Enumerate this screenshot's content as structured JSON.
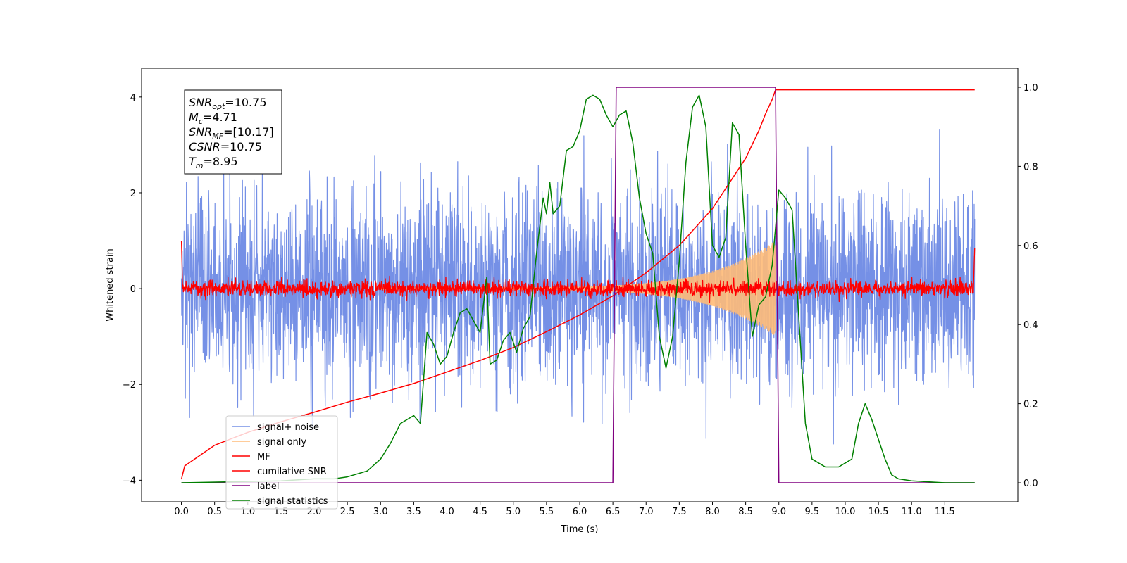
{
  "chart_data": {
    "type": "line",
    "xlabel": "Time (s)",
    "ylabel": "Whitened strain",
    "xlim": [
      -0.6,
      12.6
    ],
    "ylim": [
      -4.45,
      4.6
    ],
    "y2lim": [
      -0.048,
      1.048
    ],
    "x_ticks": [
      "0.0",
      "0.5",
      "1.0",
      "1.5",
      "2.0",
      "2.5",
      "3.0",
      "3.5",
      "4.0",
      "4.5",
      "5.0",
      "5.5",
      "6.0",
      "6.5",
      "7.0",
      "7.5",
      "8.0",
      "8.5",
      "9.0",
      "9.5",
      "10.0",
      "10.5",
      "11.0",
      "11.5"
    ],
    "y_ticks": [
      "4",
      "2",
      "0",
      "−2",
      "−4"
    ],
    "y2_ticks": [
      "1.0",
      "0.8",
      "0.6",
      "0.4",
      "0.2",
      "0.0"
    ],
    "annotation": {
      "lines": [
        {
          "label": "SNR",
          "sub": "opt",
          "value": "=10.75"
        },
        {
          "label": "M",
          "sub": "c",
          "value": "=4.71"
        },
        {
          "label": "SNR",
          "sub": "MF",
          "value": "=[10.17]"
        },
        {
          "label": "CSNR",
          "sub": "",
          "value": "=10.75"
        },
        {
          "label": "T",
          "sub": "m",
          "value": "=8.95"
        }
      ]
    },
    "legend_position": "lower-left",
    "series": [
      {
        "name": "signal+ noise",
        "color": "#7590e6",
        "axis": "left",
        "kind": "noise",
        "x_range": [
          0,
          11.95
        ],
        "sigma": 1.0,
        "peak": 4.15
      },
      {
        "name": "signal only",
        "color": "#ffbb78",
        "axis": "left",
        "kind": "chirp",
        "x_range": [
          3.0,
          8.95
        ],
        "amp_start": 0.02,
        "amp_end": 1.0
      },
      {
        "name": "MF",
        "color": "#ff0000",
        "axis": "left",
        "kind": "small-noise",
        "x_range": [
          0,
          11.95
        ],
        "sigma": 0.08,
        "start_value": 1.0,
        "end_value": 0.85
      },
      {
        "name": "cumilative SNR",
        "color": "#ff0000",
        "axis": "left",
        "x": [
          0,
          0.05,
          0.5,
          1,
          1.5,
          2,
          2.5,
          3,
          3.5,
          4,
          4.5,
          5,
          5.5,
          6,
          6.5,
          7,
          7.5,
          8,
          8.5,
          8.7,
          8.8,
          8.9,
          8.95,
          11.95
        ],
        "y": [
          -3.98,
          -3.7,
          -3.27,
          -3.0,
          -2.78,
          -2.58,
          -2.37,
          -2.18,
          -1.98,
          -1.74,
          -1.5,
          -1.23,
          -0.9,
          -0.55,
          -0.15,
          0.33,
          0.9,
          1.67,
          2.72,
          3.3,
          3.65,
          3.95,
          4.15,
          4.15
        ]
      },
      {
        "name": "label",
        "color": "#800080",
        "axis": "right",
        "x": [
          0,
          6.5,
          6.55,
          8.95,
          9.0,
          11.95
        ],
        "y": [
          0,
          0,
          1,
          1,
          0,
          0
        ]
      },
      {
        "name": "signal statistics",
        "color": "#008000",
        "axis": "right",
        "x": [
          0,
          1.5,
          2.0,
          2.3,
          2.5,
          2.8,
          3.0,
          3.15,
          3.3,
          3.5,
          3.6,
          3.7,
          3.8,
          3.9,
          4.0,
          4.1,
          4.2,
          4.3,
          4.4,
          4.5,
          4.6,
          4.65,
          4.75,
          4.85,
          4.95,
          5.05,
          5.15,
          5.25,
          5.35,
          5.45,
          5.5,
          5.55,
          5.6,
          5.7,
          5.8,
          5.9,
          6.0,
          6.1,
          6.2,
          6.3,
          6.4,
          6.5,
          6.6,
          6.7,
          6.8,
          6.9,
          7.0,
          7.1,
          7.2,
          7.3,
          7.4,
          7.5,
          7.6,
          7.7,
          7.8,
          7.9,
          8.0,
          8.1,
          8.2,
          8.3,
          8.4,
          8.5,
          8.6,
          8.7,
          8.8,
          8.9,
          9.0,
          9.1,
          9.2,
          9.3,
          9.4,
          9.5,
          9.6,
          9.7,
          9.8,
          9.9,
          10.0,
          10.1,
          10.2,
          10.3,
          10.4,
          10.5,
          10.6,
          10.7,
          10.8,
          11.0,
          11.5,
          11.95
        ],
        "y": [
          0.0,
          0.005,
          0.01,
          0.01,
          0.015,
          0.03,
          0.06,
          0.1,
          0.15,
          0.17,
          0.15,
          0.38,
          0.35,
          0.3,
          0.32,
          0.38,
          0.43,
          0.44,
          0.41,
          0.38,
          0.52,
          0.3,
          0.31,
          0.36,
          0.38,
          0.33,
          0.39,
          0.42,
          0.58,
          0.72,
          0.68,
          0.76,
          0.68,
          0.7,
          0.84,
          0.85,
          0.89,
          0.97,
          0.98,
          0.97,
          0.93,
          0.9,
          0.93,
          0.94,
          0.86,
          0.72,
          0.63,
          0.58,
          0.37,
          0.29,
          0.37,
          0.56,
          0.81,
          0.95,
          0.98,
          0.9,
          0.6,
          0.57,
          0.62,
          0.91,
          0.88,
          0.6,
          0.37,
          0.45,
          0.47,
          0.55,
          0.74,
          0.72,
          0.69,
          0.42,
          0.15,
          0.06,
          0.05,
          0.04,
          0.04,
          0.04,
          0.05,
          0.06,
          0.15,
          0.2,
          0.16,
          0.11,
          0.06,
          0.02,
          0.01,
          0.005,
          0.0,
          0.0
        ]
      }
    ]
  }
}
